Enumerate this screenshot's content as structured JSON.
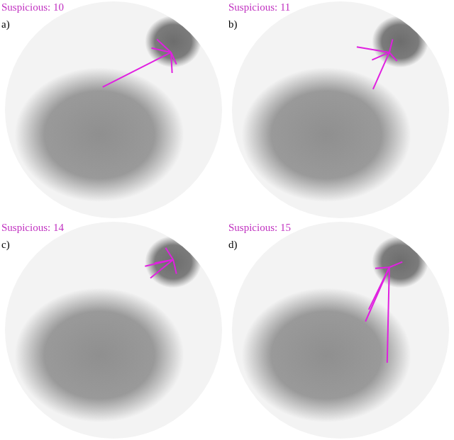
{
  "chart_data": [
    {
      "type": "scatter",
      "title": "Suspicious: 10",
      "subtitle": "a)",
      "xlim": [
        -1,
        1
      ],
      "ylim": [
        -1,
        1
      ],
      "grid": false,
      "tick_labels": false,
      "clusters": [
        {
          "center": [
            -0.13,
            -0.23
          ],
          "radius": [
            0.78,
            0.62
          ],
          "color": "#8a8a8a"
        },
        {
          "center": [
            0.55,
            0.63
          ],
          "radius": [
            0.26,
            0.24
          ],
          "color": "#666666"
        }
      ],
      "segments": {
        "color": "#e020e0",
        "hub": [
          0.53,
          0.53
        ],
        "ends": [
          [
            -0.1,
            0.21
          ],
          [
            0.54,
            0.34
          ],
          [
            0.4,
            0.65
          ],
          [
            0.35,
            0.57
          ],
          [
            0.58,
            0.42
          ]
        ]
      }
    },
    {
      "type": "scatter",
      "title": "Suspicious: 11",
      "subtitle": "b)",
      "xlim": [
        -1,
        1
      ],
      "ylim": [
        -1,
        1
      ],
      "grid": false,
      "tick_labels": false,
      "clusters": [
        {
          "center": [
            -0.13,
            -0.23
          ],
          "radius": [
            0.78,
            0.62
          ],
          "color": "#8a8a8a"
        },
        {
          "center": [
            0.55,
            0.63
          ],
          "radius": [
            0.26,
            0.24
          ],
          "color": "#666666"
        }
      ],
      "segments": {
        "color": "#e020e0",
        "hub": [
          0.45,
          0.53
        ],
        "ends": [
          [
            0.15,
            0.58
          ],
          [
            0.29,
            0.46
          ],
          [
            0.3,
            0.19
          ],
          [
            0.52,
            0.45
          ],
          [
            0.48,
            0.65
          ]
        ]
      }
    },
    {
      "type": "scatter",
      "title": "Suspicious: 14",
      "subtitle": "c)",
      "xlim": [
        -1,
        1
      ],
      "ylim": [
        -1,
        1
      ],
      "grid": false,
      "tick_labels": false,
      "clusters": [
        {
          "center": [
            -0.13,
            -0.23
          ],
          "radius": [
            0.78,
            0.62
          ],
          "color": "#8a8a8a"
        },
        {
          "center": [
            0.55,
            0.63
          ],
          "radius": [
            0.26,
            0.24
          ],
          "color": "#666666"
        }
      ],
      "segments": {
        "color": "#e020e0",
        "hub": [
          0.55,
          0.65
        ],
        "ends": [
          [
            0.29,
            0.59
          ],
          [
            0.48,
            0.76
          ],
          [
            0.58,
            0.52
          ],
          [
            0.34,
            0.48
          ],
          [
            0.38,
            0.62
          ]
        ]
      }
    },
    {
      "type": "scatter",
      "title": "Suspicious: 15",
      "subtitle": "d)",
      "xlim": [
        -1,
        1
      ],
      "ylim": [
        -1,
        1
      ],
      "grid": false,
      "tick_labels": false,
      "clusters": [
        {
          "center": [
            -0.13,
            -0.23
          ],
          "radius": [
            0.78,
            0.62
          ],
          "color": "#8a8a8a"
        },
        {
          "center": [
            0.55,
            0.63
          ],
          "radius": [
            0.26,
            0.24
          ],
          "color": "#666666"
        }
      ],
      "segments": {
        "color": "#e020e0",
        "hub": [
          0.45,
          0.58
        ],
        "ends": [
          [
            0.23,
            0.08
          ],
          [
            0.43,
            -0.3
          ],
          [
            0.26,
            0.19
          ],
          [
            0.57,
            0.63
          ],
          [
            0.32,
            0.57
          ]
        ]
      }
    }
  ]
}
